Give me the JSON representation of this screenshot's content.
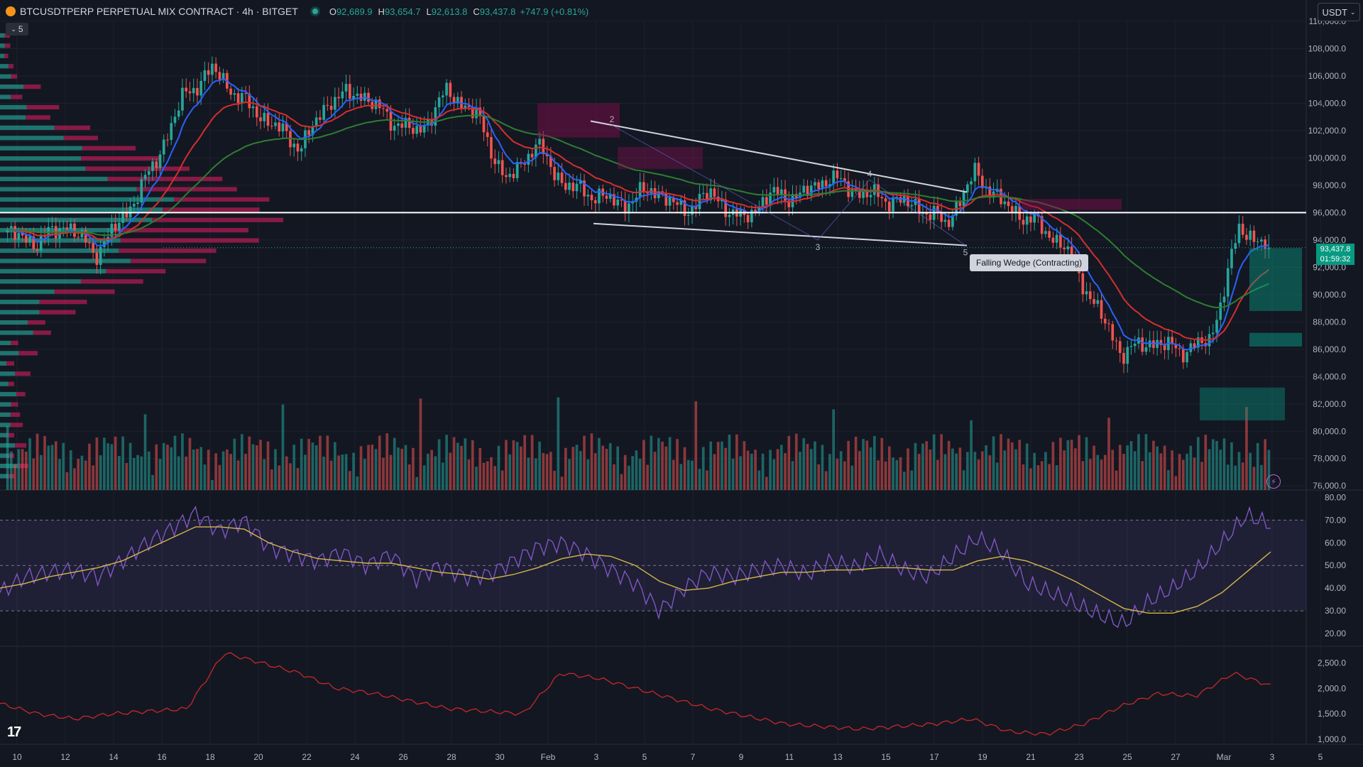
{
  "header": {
    "symbol": "BTCUSDTPERP PERPETUAL MIX CONTRACT · 4h · BITGET",
    "ohlc": [
      {
        "k": "O",
        "v": "92,689.9"
      },
      {
        "k": "H",
        "v": "93,654.7"
      },
      {
        "k": "L",
        "v": "92,613.8"
      },
      {
        "k": "C",
        "v": "93,437.8"
      }
    ],
    "change": "+747.9 (+0.81%)"
  },
  "indicator_toggle": "5",
  "currency": "USDT",
  "last_price": "93,437.8",
  "countdown": "01:59:32",
  "pattern_label": "Falling Wedge (Contracting)",
  "colors": {
    "bull": "#26a69a",
    "bear": "#ef5350",
    "ema_fast": "#2962ff",
    "ema_mid": "#d32f2f",
    "ema_slow": "#2e7d32",
    "rsi": "#7e57c2",
    "rsi_ma": "#d4b84a",
    "lower": "#c62828"
  },
  "chart_data": [
    {
      "type": "candlestick",
      "price_ticks": [
        "110,000.0",
        "108,000.0",
        "106,000.0",
        "104,000.0",
        "102,000.0",
        "100,000.0",
        "98,000.0",
        "96,000.0",
        "94,000.0",
        "92,000.0",
        "90,000.0",
        "88,000.0",
        "86,000.0",
        "84,000.0",
        "82,000.0",
        "80,000.0",
        "78,000.0",
        "76,000.0"
      ],
      "ylim": [
        75700,
        110000
      ],
      "x_labels": [
        "10",
        "12",
        "14",
        "16",
        "18",
        "20",
        "22",
        "24",
        "26",
        "28",
        "30",
        "Feb",
        "3",
        "5",
        "7",
        "9",
        "11",
        "13",
        "15",
        "17",
        "19",
        "21",
        "23",
        "25",
        "27",
        "Mar",
        "3",
        "5"
      ],
      "horizontal_line": 96000,
      "wedge_points": [
        "2",
        "3",
        "4",
        "5"
      ],
      "price_path": [
        94500,
        93800,
        95200,
        93000,
        95800,
        99500,
        104500,
        106500,
        104200,
        102500,
        100800,
        104300,
        104800,
        102900,
        101800,
        104900,
        103100,
        98200,
        101000,
        98000,
        97300,
        96600,
        97800,
        96100,
        97400,
        95400,
        97300,
        97200,
        98600,
        97500,
        97000,
        96500,
        95200,
        98900,
        96500,
        95300,
        93600,
        89500,
        85700,
        86600,
        85900,
        86600,
        94900,
        93437.8
      ]
    },
    {
      "type": "line",
      "name": "RSI",
      "ticks": [
        "80.00",
        "70.00",
        "60.00",
        "50.00",
        "40.00",
        "30.00",
        "20.00"
      ],
      "ylim": [
        15,
        82
      ],
      "bands": [
        30,
        50,
        70
      ],
      "rsi": [
        38,
        45,
        47,
        48,
        45,
        52,
        60,
        66,
        73,
        65,
        70,
        58,
        55,
        52,
        56,
        50,
        55,
        44,
        50,
        45,
        46,
        52,
        58,
        60,
        55,
        48,
        42,
        30,
        40,
        47,
        45,
        48,
        50,
        46,
        52,
        49,
        55,
        48,
        45,
        54,
        62,
        56,
        42,
        38,
        33,
        28,
        24,
        34,
        40,
        48,
        60,
        72,
        68
      ],
      "rsi_ma": [
        40,
        42,
        45,
        47,
        49,
        52,
        57,
        62,
        67,
        67,
        66,
        60,
        56,
        53,
        52,
        51,
        51,
        49,
        47,
        46,
        44,
        46,
        49,
        53,
        55,
        54,
        50,
        43,
        39,
        40,
        43,
        45,
        47,
        47,
        48,
        48,
        49,
        49,
        48,
        48,
        52,
        54,
        52,
        48,
        43,
        37,
        31,
        29,
        29,
        32,
        38,
        47,
        56
      ]
    },
    {
      "type": "line",
      "name": "lower",
      "ticks": [
        "2,500.0",
        "2,000.0",
        "1,500.0",
        "1,000.0"
      ],
      "ylim": [
        900,
        2800
      ],
      "values": [
        1700,
        1500,
        1400,
        1500,
        1550,
        1600,
        2700,
        2500,
        2300,
        2000,
        1900,
        1750,
        1600,
        1550,
        1500,
        2300,
        2200,
        2000,
        1800,
        1600,
        1450,
        1300,
        1250,
        1200,
        1250,
        1300,
        1400,
        1150,
        1100,
        1300,
        1650,
        1900,
        1850,
        2300,
        2050
      ]
    }
  ]
}
